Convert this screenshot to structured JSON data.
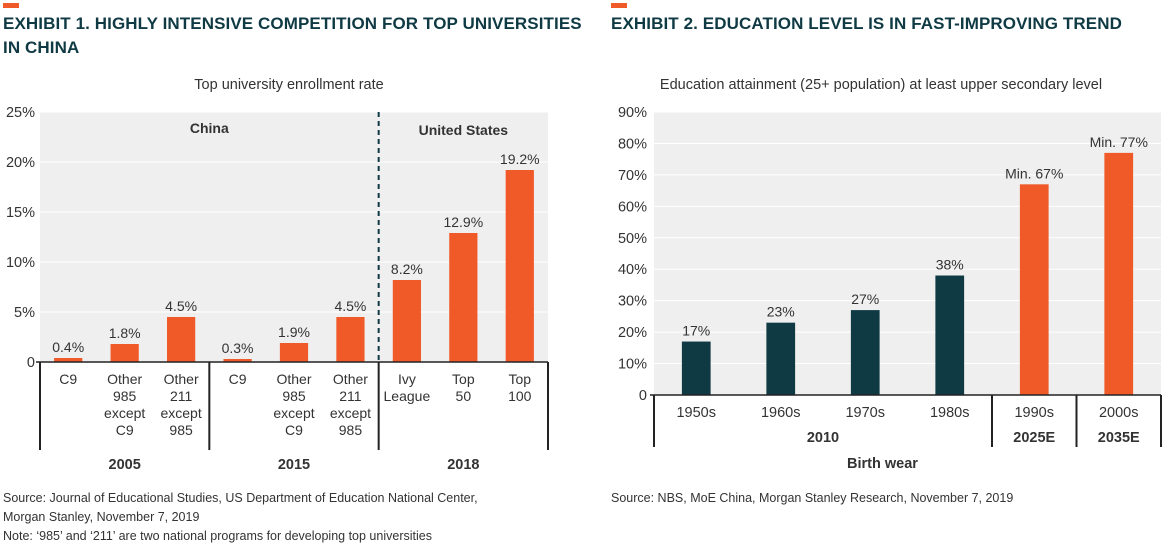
{
  "colors": {
    "orange": "#f05a28",
    "navy": "#0f3a44",
    "panel": "#efefef",
    "text": "#333333",
    "grid": "#d9d9d9"
  },
  "exhibit1": {
    "title_line1": "EXHIBIT 1. HIGHLY INTENSIVE COMPETITION FOR TOP UNIVERSITIES",
    "title_line2": "IN CHINA",
    "source_line1": "Source: Journal of Educational Studies, US Department of Education National Center,",
    "source_line2": "Morgan Stanley, November 7, 2019",
    "note": "Note: ‘985’ and ‘211’ are two national programs for developing top universities"
  },
  "exhibit2": {
    "title": "EXHIBIT 2. EDUCATION LEVEL IS IN FAST-IMPROVING TREND",
    "source": "Source: NBS, MoE China, Morgan Stanley Research, November 7, 2019"
  },
  "chart_data": [
    {
      "type": "bar",
      "title": "Top university enrollment rate",
      "ylim": [
        0,
        25
      ],
      "yticks": [
        "0",
        "5%",
        "10%",
        "15%",
        "20%",
        "25%"
      ],
      "yticks_values": [
        0,
        5,
        10,
        15,
        20,
        25
      ],
      "region_labels": [
        "China",
        "United States"
      ],
      "categories": [
        [
          "C9"
        ],
        [
          "Other",
          "985",
          "except",
          "C9"
        ],
        [
          "Other",
          "211",
          "except",
          "985"
        ],
        [
          "C9"
        ],
        [
          "Other",
          "985",
          "except",
          "C9"
        ],
        [
          "Other",
          "211",
          "except",
          "985"
        ],
        [
          "Ivy",
          "League"
        ],
        [
          "Top",
          "50"
        ],
        [
          "Top",
          "100"
        ]
      ],
      "values": [
        0.4,
        1.8,
        4.5,
        0.3,
        1.9,
        4.5,
        8.2,
        12.9,
        19.2
      ],
      "value_labels": [
        "0.4%",
        "1.8%",
        "4.5%",
        "0.3%",
        "1.9%",
        "4.5%",
        "8.2%",
        "12.9%",
        "19.2%"
      ],
      "groups": [
        {
          "label": "2005",
          "count": 3
        },
        {
          "label": "2015",
          "count": 3
        },
        {
          "label": "2018",
          "count": 3
        }
      ],
      "grid": true
    },
    {
      "type": "bar",
      "title": "Education attainment (25+ population) at least upper secondary level",
      "ylim": [
        0,
        90
      ],
      "yticks": [
        "0",
        "10%",
        "20%",
        "30%",
        "40%",
        "50%",
        "60%",
        "70%",
        "80%",
        "90%"
      ],
      "yticks_values": [
        0,
        10,
        20,
        30,
        40,
        50,
        60,
        70,
        80,
        90
      ],
      "categories": [
        "1950s",
        "1960s",
        "1970s",
        "1980s",
        "1990s",
        "2000s"
      ],
      "values": [
        17,
        23,
        27,
        38,
        67,
        77
      ],
      "value_labels": [
        "17%",
        "23%",
        "27%",
        "38%",
        "Min. 67%",
        "Min. 77%"
      ],
      "bar_colors": [
        "navy",
        "navy",
        "navy",
        "navy",
        "orange",
        "orange"
      ],
      "groups": [
        {
          "label": "2010",
          "count": 4
        },
        {
          "label": "2025E",
          "count": 1
        },
        {
          "label": "2035E",
          "count": 1
        }
      ],
      "xlabel": "Birth wear",
      "grid": true
    }
  ]
}
